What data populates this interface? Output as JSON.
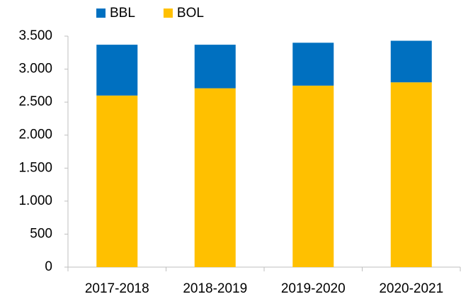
{
  "chart_data": {
    "type": "stacked_bar",
    "categories": [
      "2017-2018",
      "2018-2019",
      "2019-2020",
      "2020-2021"
    ],
    "series": [
      {
        "name": "BBL",
        "color": "#0070c0",
        "values": [
          770,
          660,
          650,
          630
        ]
      },
      {
        "name": "BOL",
        "color": "#ffc000",
        "values": [
          2600,
          2710,
          2750,
          2800
        ]
      }
    ],
    "ylim": [
      0,
      3500
    ],
    "yticks": [
      0,
      500,
      {
        "value": 1000,
        "label": "1.000"
      },
      {
        "value": 1500,
        "label": "1.500"
      },
      {
        "value": 2000,
        "label": "2.000"
      },
      {
        "value": 2500,
        "label": "2.500"
      },
      {
        "value": 3000,
        "label": "3.000"
      },
      {
        "value": 3500,
        "label": "3.500"
      }
    ],
    "grid": false,
    "legend": "top-left"
  }
}
